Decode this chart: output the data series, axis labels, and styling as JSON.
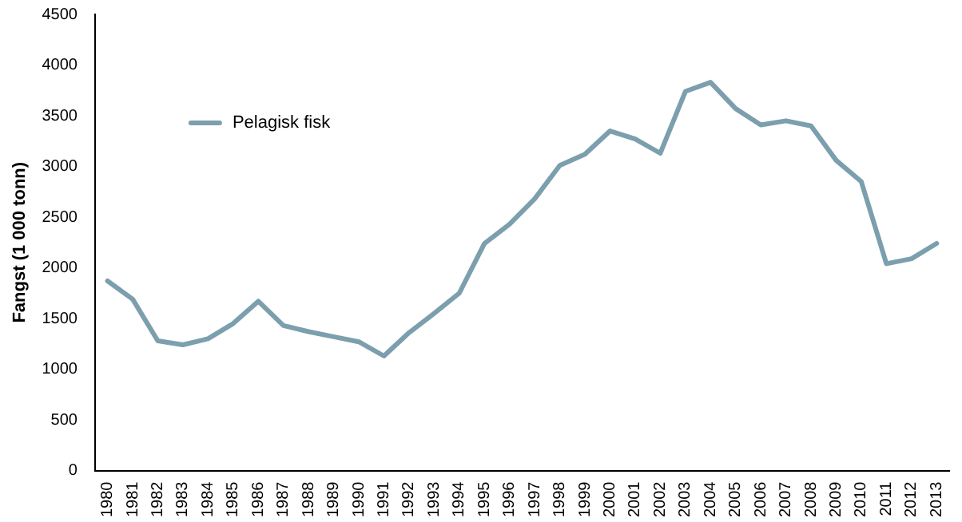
{
  "chart_data": {
    "type": "line",
    "ylabel": "Fangst (1 000 tonn)",
    "categories": [
      "1980",
      "1981",
      "1982",
      "1983",
      "1984",
      "1985",
      "1986",
      "1987",
      "1988",
      "1989",
      "1990",
      "1991",
      "1992",
      "1993",
      "1994",
      "1995",
      "1996",
      "1997",
      "1998",
      "1999",
      "2000",
      "2001",
      "2002",
      "2003",
      "2004",
      "2005",
      "2006",
      "2007",
      "2008",
      "2009",
      "2010",
      "2011",
      "2012",
      "2013"
    ],
    "series": [
      {
        "name": "Pelagisk fisk",
        "color": "#7c9fae",
        "values": [
          1870,
          1690,
          1280,
          1240,
          1300,
          1450,
          1670,
          1430,
          1370,
          1320,
          1270,
          1130,
          1360,
          1550,
          1750,
          2240,
          2430,
          2680,
          3010,
          3120,
          3350,
          3270,
          3130,
          3740,
          3830,
          3570,
          3410,
          3450,
          3400,
          3060,
          2850,
          2040,
          2090,
          2240
        ]
      }
    ],
    "ylim": [
      0,
      4500
    ],
    "yticks": [
      0,
      500,
      1000,
      1500,
      2000,
      2500,
      3000,
      3500,
      4000,
      4500
    ],
    "grid": false,
    "legend": "top left",
    "marker": "none",
    "line_style": "solid"
  }
}
